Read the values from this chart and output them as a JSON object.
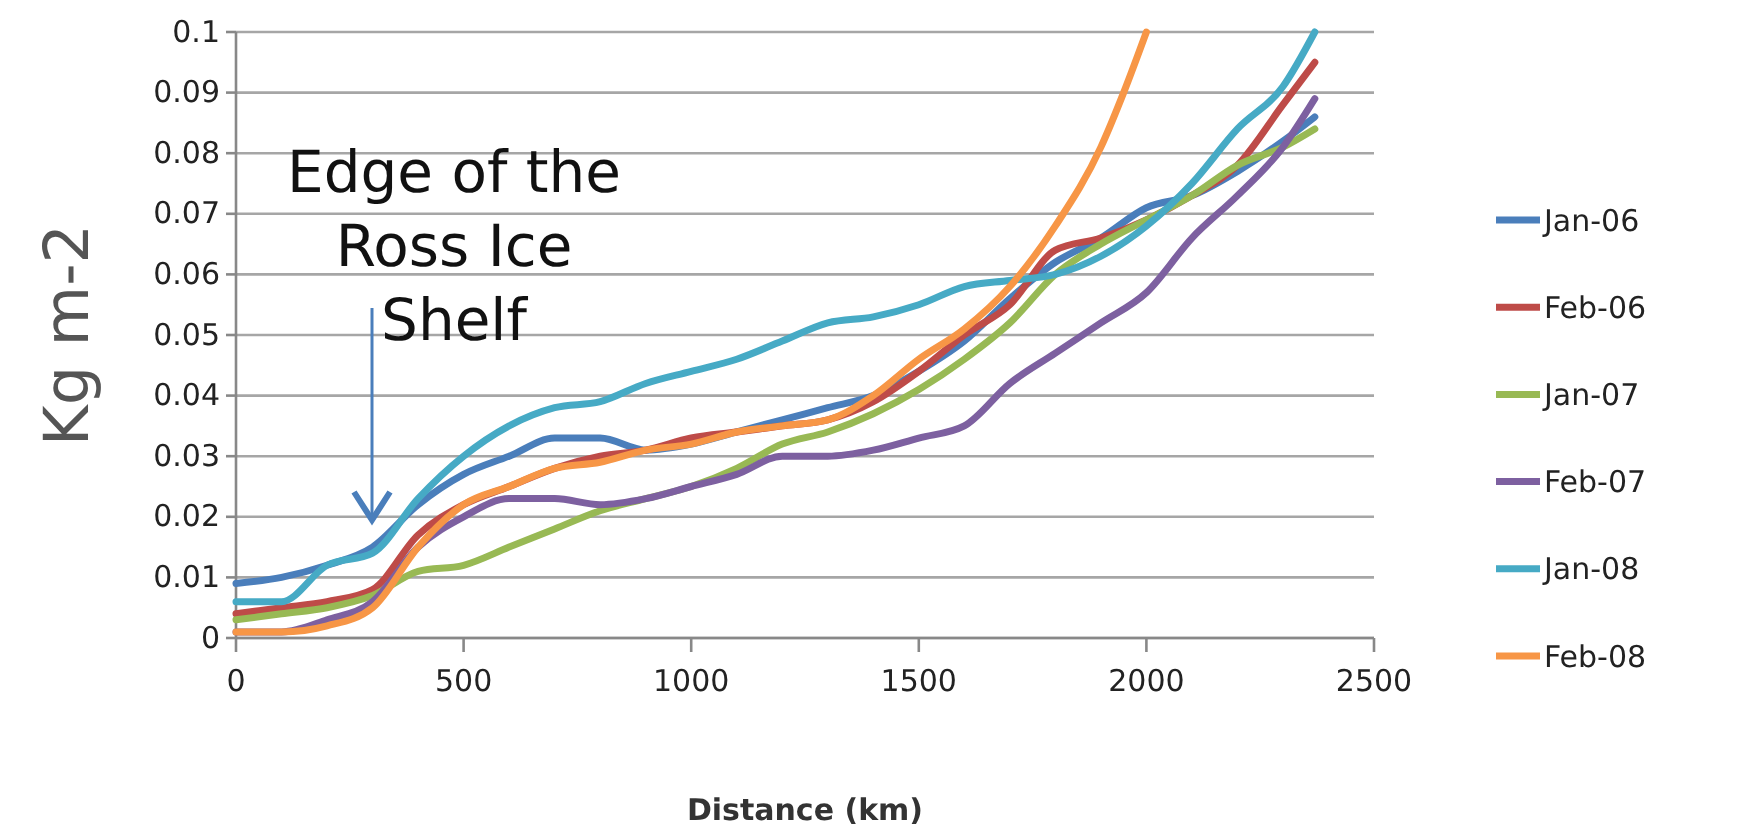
{
  "chart_data": {
    "type": "line",
    "xlabel": "Distance (km)",
    "ylabel": "Kg m-2",
    "x": [
      0,
      100,
      200,
      300,
      400,
      500,
      600,
      700,
      800,
      900,
      1000,
      1100,
      1200,
      1300,
      1400,
      1500,
      1600,
      1700,
      1800,
      1900,
      2000,
      2100,
      2200,
      2300,
      2370
    ],
    "series": [
      {
        "name": "Jan-06",
        "color": "#4a7ebb",
        "values": [
          0.009,
          0.01,
          0.012,
          0.015,
          0.022,
          0.027,
          0.03,
          0.033,
          0.033,
          0.031,
          0.032,
          0.034,
          0.036,
          0.038,
          0.04,
          0.044,
          0.049,
          0.056,
          0.062,
          0.066,
          0.071,
          0.073,
          0.077,
          0.082,
          0.086
        ]
      },
      {
        "name": "Feb-06",
        "color": "#be4b48",
        "values": [
          0.004,
          0.005,
          0.006,
          0.008,
          0.017,
          0.022,
          0.025,
          0.028,
          0.03,
          0.031,
          0.033,
          0.034,
          0.035,
          0.036,
          0.039,
          0.044,
          0.05,
          0.055,
          0.064,
          0.066,
          0.069,
          0.073,
          0.078,
          0.088,
          0.095
        ]
      },
      {
        "name": "Jan-07",
        "color": "#98b954",
        "values": [
          0.003,
          0.004,
          0.005,
          0.007,
          0.011,
          0.012,
          0.015,
          0.018,
          0.021,
          0.023,
          0.025,
          0.028,
          0.032,
          0.034,
          0.037,
          0.041,
          0.046,
          0.052,
          0.06,
          0.065,
          0.069,
          0.073,
          0.078,
          0.081,
          0.084
        ]
      },
      {
        "name": "Feb-07",
        "color": "#7d60a0",
        "values": [
          0.001,
          0.001,
          0.003,
          0.006,
          0.015,
          0.02,
          0.023,
          0.023,
          0.022,
          0.023,
          0.025,
          0.027,
          0.03,
          0.03,
          0.031,
          0.033,
          0.035,
          0.042,
          0.047,
          0.052,
          0.057,
          0.066,
          0.073,
          0.081,
          0.089
        ]
      },
      {
        "name": "Jan-08",
        "color": "#46aac5",
        "values": [
          0.006,
          0.006,
          0.012,
          0.014,
          0.023,
          0.03,
          0.035,
          0.038,
          0.039,
          0.042,
          0.044,
          0.046,
          0.049,
          0.052,
          0.053,
          0.055,
          0.058,
          0.059,
          0.06,
          0.063,
          0.068,
          0.075,
          0.084,
          0.091,
          0.1
        ]
      },
      {
        "name": "Feb-08",
        "color": "#f79646",
        "x": [
          0,
          100,
          200,
          300,
          400,
          500,
          600,
          700,
          800,
          900,
          1000,
          1100,
          1200,
          1300,
          1400,
          1500,
          1600,
          1700,
          1800,
          1900,
          1950,
          2000
        ],
        "values": [
          0.001,
          0.001,
          0.002,
          0.005,
          0.015,
          0.022,
          0.025,
          0.028,
          0.029,
          0.031,
          0.032,
          0.034,
          0.035,
          0.036,
          0.04,
          0.046,
          0.051,
          0.058,
          0.068,
          0.081,
          0.09,
          0.1
        ]
      }
    ],
    "xlim": [
      0,
      2500
    ],
    "xticks": [
      0,
      500,
      1000,
      1500,
      2000,
      2500
    ],
    "ylim": [
      0,
      0.1
    ],
    "yticks": [
      0,
      0.01,
      0.02,
      0.03,
      0.04,
      0.05,
      0.06,
      0.07,
      0.08,
      0.09,
      0.1
    ],
    "grid": "y",
    "legend": "right",
    "marker": "none",
    "line_style": "solid",
    "annotations": [
      "Edge of the Ross Ice Shelf"
    ]
  }
}
